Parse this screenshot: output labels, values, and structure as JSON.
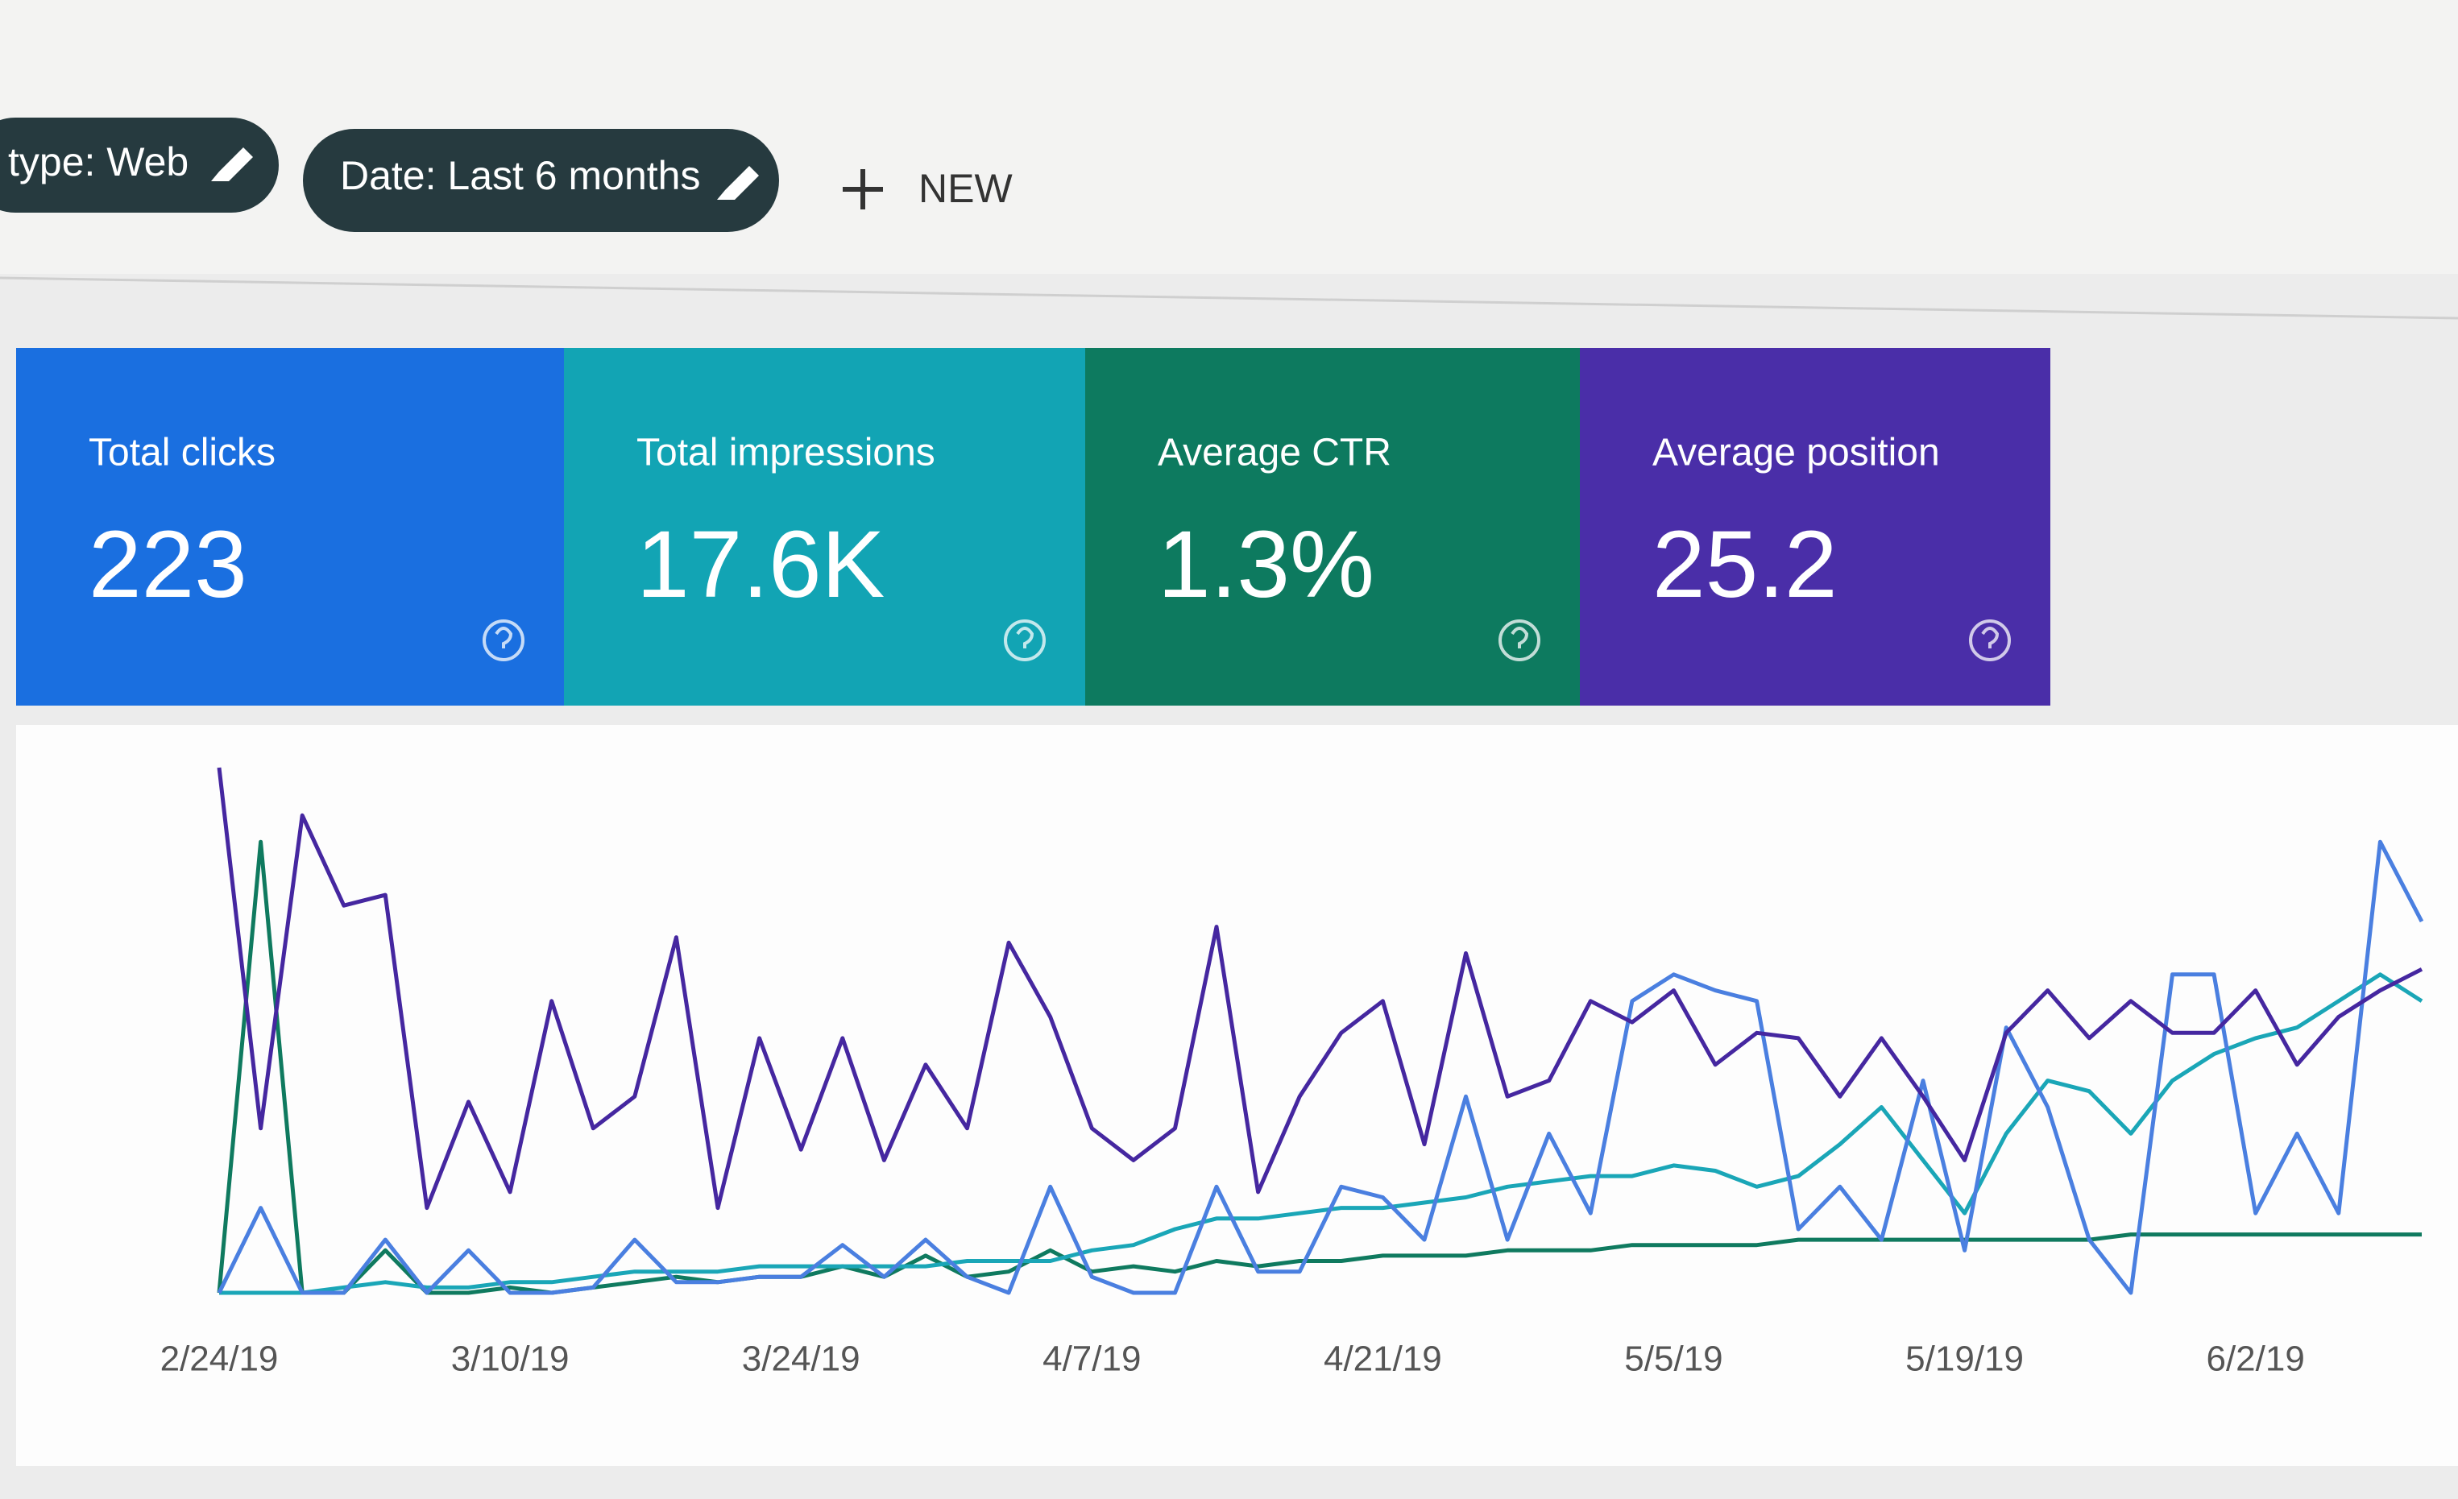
{
  "toolbar": {
    "filters": [
      "type: Web",
      "Date: Last 6 months"
    ],
    "new_button": "NEW"
  },
  "cards": [
    {
      "title": "Total clicks",
      "value": "223",
      "color": "#1a6fe0"
    },
    {
      "title": "Total impressions",
      "value": "17.6K",
      "color": "#12a4b4"
    },
    {
      "title": "Average CTR",
      "value": "1.3%",
      "color": "#0d7a5f"
    },
    {
      "title": "Average position",
      "value": "25.2",
      "color": "#4a2ea8"
    }
  ],
  "chart": {
    "type": "line",
    "xlim": [
      0,
      53
    ],
    "xticks": [
      {
        "value": 0,
        "label": "2/24/19"
      },
      {
        "value": 7,
        "label": "3/10/19"
      },
      {
        "value": 14,
        "label": "3/24/19"
      },
      {
        "value": 21,
        "label": "4/7/19"
      },
      {
        "value": 28,
        "label": "4/21/19"
      },
      {
        "value": 35,
        "label": "5/5/19"
      },
      {
        "value": 42,
        "label": "5/19/19"
      },
      {
        "value": 49,
        "label": "6/2/19"
      }
    ],
    "series": [
      {
        "color": "#0f7a5f",
        "values": [
          0,
          85,
          0,
          0,
          8,
          0,
          0,
          1,
          0,
          1,
          2,
          3,
          2,
          3,
          3,
          5,
          3,
          7,
          3,
          4,
          8,
          4,
          5,
          4,
          6,
          5,
          6,
          6,
          7,
          7,
          7,
          8,
          8,
          8,
          9,
          9,
          9,
          9,
          10,
          10,
          10,
          10,
          10,
          10,
          10,
          10,
          11,
          11,
          11,
          11,
          11,
          11,
          11,
          11
        ]
      },
      {
        "color": "#1aa6b7",
        "values": [
          0,
          0,
          0,
          1,
          2,
          1,
          1,
          2,
          2,
          3,
          4,
          4,
          4,
          5,
          5,
          5,
          5,
          5,
          6,
          6,
          6,
          8,
          9,
          12,
          14,
          14,
          15,
          16,
          16,
          17,
          18,
          20,
          21,
          22,
          22,
          24,
          23,
          20,
          22,
          28,
          35,
          25,
          15,
          30,
          40,
          38,
          30,
          40,
          45,
          48,
          50,
          55,
          60,
          55
        ]
      },
      {
        "color": "#4a7fe0",
        "values": [
          0,
          16,
          0,
          0,
          10,
          0,
          8,
          0,
          0,
          1,
          10,
          2,
          2,
          3,
          3,
          9,
          3,
          10,
          3,
          0,
          20,
          3,
          0,
          0,
          20,
          4,
          4,
          20,
          18,
          10,
          37,
          10,
          30,
          15,
          55,
          60,
          57,
          55,
          12,
          20,
          10,
          40,
          8,
          50,
          35,
          10,
          0,
          60,
          60,
          15,
          30,
          15,
          85,
          70
        ]
      },
      {
        "color": "#4527a0",
        "values": [
          99,
          31,
          90,
          73,
          75,
          16,
          36,
          19,
          55,
          31,
          37,
          67,
          16,
          48,
          27,
          48,
          25,
          43,
          31,
          66,
          52,
          31,
          25,
          31,
          69,
          19,
          37,
          49,
          55,
          28,
          64,
          37,
          40,
          55,
          51,
          57,
          43,
          49,
          48,
          37,
          48,
          37,
          25,
          49,
          57,
          48,
          55,
          49,
          49,
          57,
          43,
          52,
          57,
          61
        ]
      }
    ]
  }
}
